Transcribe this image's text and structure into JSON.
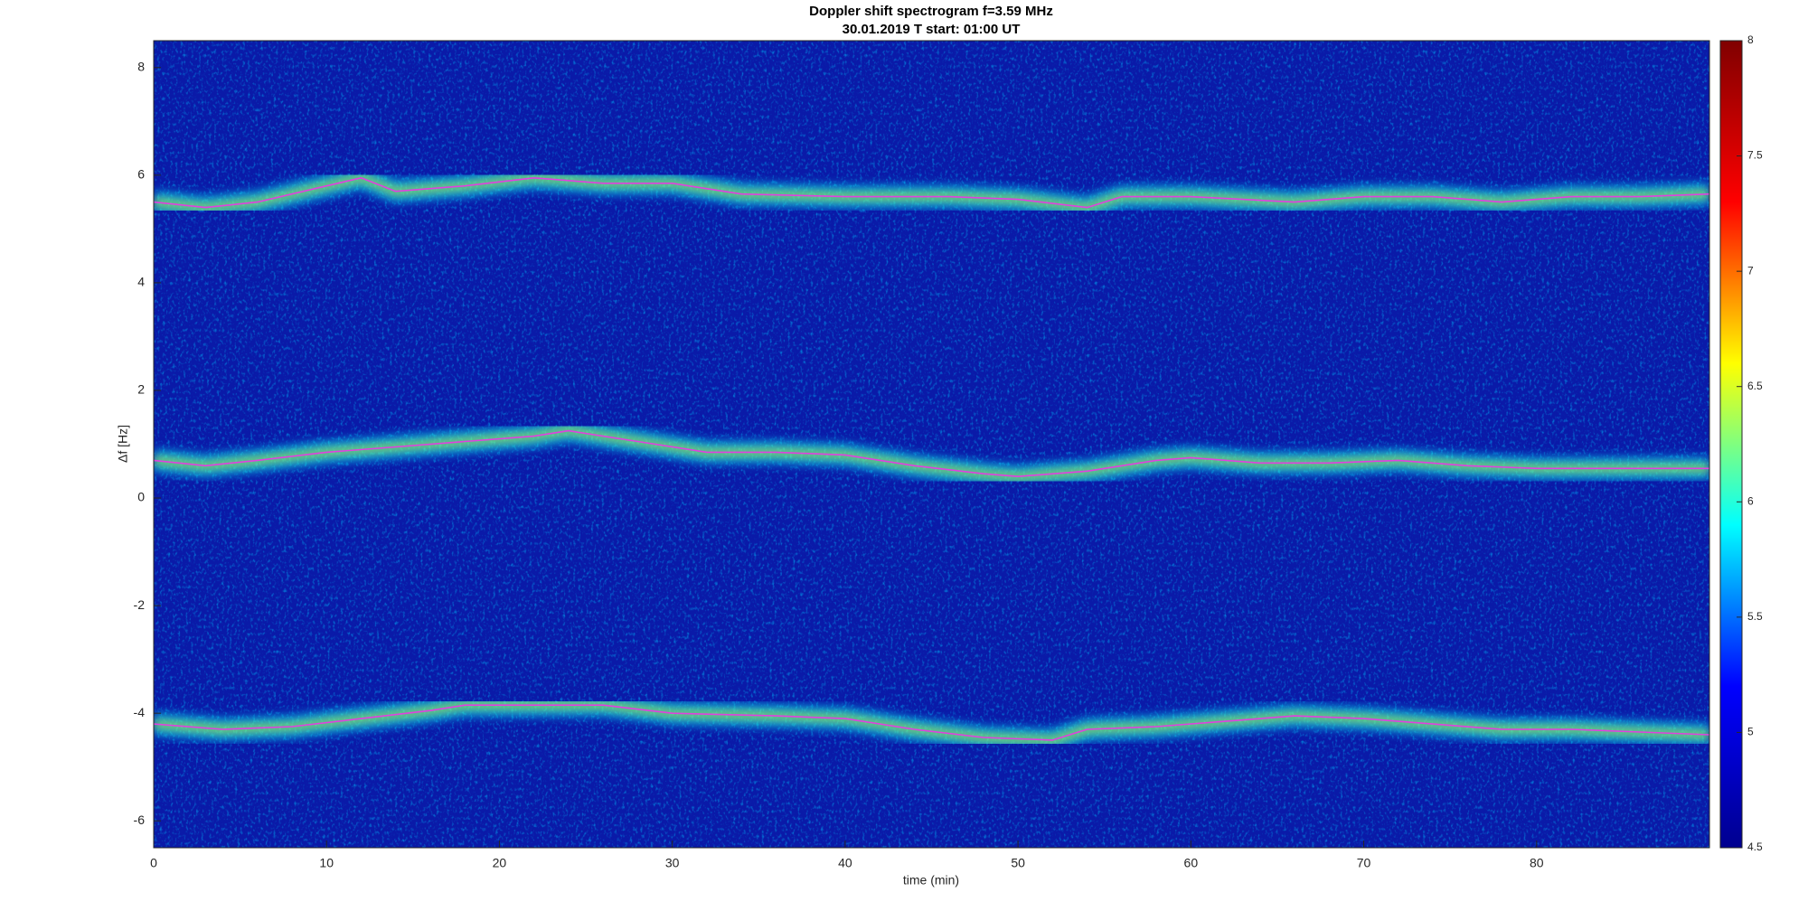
{
  "chart_data": {
    "type": "line",
    "title": "Doppler shift spectrogram f=3.59 MHz",
    "subtitle": "30.01.2019   T start: 01:00 UT",
    "x_label": "time (min)",
    "y_label": "Δf [Hz]",
    "xlim": [
      0,
      90
    ],
    "xticks": [
      0,
      10,
      20,
      30,
      40,
      50,
      60,
      70,
      80
    ],
    "ylim": [
      -6.5,
      8.5
    ],
    "yticks": [
      -6,
      -4,
      -2,
      0,
      2,
      4,
      6,
      8
    ],
    "background": "#0a1aa8",
    "colorbar": {
      "lim": [
        4.5,
        8
      ],
      "ticks": [
        4.5,
        5,
        5.5,
        6,
        6.5,
        7,
        7.5,
        8
      ],
      "colormap": [
        "#00008f",
        "#0000ff",
        "#00ffff",
        "#ffff00",
        "#ff0000",
        "#800000"
      ]
    },
    "series": [
      {
        "color": "#e040e0",
        "x": [
          0,
          3,
          6,
          10,
          12,
          14,
          18,
          22,
          26,
          30,
          34,
          40,
          46,
          50,
          54,
          56,
          60,
          66,
          70,
          74,
          78,
          82,
          86,
          90
        ],
        "values": [
          5.5,
          5.4,
          5.5,
          5.8,
          5.95,
          5.7,
          5.8,
          5.95,
          5.85,
          5.85,
          5.65,
          5.6,
          5.6,
          5.55,
          5.4,
          5.6,
          5.6,
          5.5,
          5.6,
          5.6,
          5.5,
          5.6,
          5.6,
          5.65
        ]
      },
      {
        "color": "#e040e0",
        "x": [
          0,
          3,
          6,
          10,
          14,
          18,
          22,
          24,
          28,
          32,
          36,
          40,
          44,
          48,
          50,
          54,
          58,
          60,
          64,
          68,
          72,
          76,
          80,
          86,
          90
        ],
        "values": [
          0.7,
          0.6,
          0.7,
          0.85,
          0.95,
          1.05,
          1.15,
          1.25,
          1.05,
          0.85,
          0.85,
          0.8,
          0.6,
          0.45,
          0.4,
          0.5,
          0.7,
          0.75,
          0.65,
          0.65,
          0.7,
          0.6,
          0.55,
          0.55,
          0.55
        ]
      },
      {
        "color": "#e040e0",
        "x": [
          0,
          4,
          8,
          12,
          16,
          18,
          22,
          26,
          30,
          36,
          40,
          44,
          48,
          52,
          54,
          58,
          62,
          66,
          70,
          74,
          78,
          82,
          86,
          90
        ],
        "values": [
          -4.2,
          -4.3,
          -4.25,
          -4.1,
          -3.95,
          -3.85,
          -3.85,
          -3.85,
          -4.0,
          -4.05,
          -4.1,
          -4.3,
          -4.45,
          -4.5,
          -4.3,
          -4.25,
          -4.15,
          -4.05,
          -4.1,
          -4.2,
          -4.3,
          -4.3,
          -4.35,
          -4.4
        ]
      }
    ]
  }
}
